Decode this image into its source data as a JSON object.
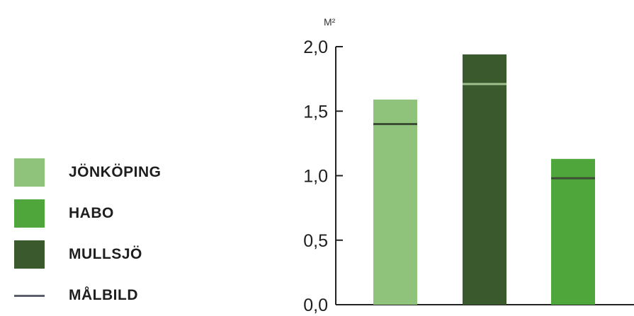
{
  "chart_data": {
    "type": "bar",
    "ylabel": "M²",
    "ylim": [
      0,
      2.0
    ],
    "yticks": [
      "0,0",
      "0,5",
      "1,0",
      "1,5",
      "2,0"
    ],
    "ytick_values": [
      0,
      0.5,
      1.0,
      1.5,
      2.0
    ],
    "grid": false,
    "legend_position": "left",
    "bars": [
      {
        "name": "JÖNKÖPING",
        "value": 1.59,
        "target": 1.4,
        "color": "#8fc37b"
      },
      {
        "name": "MULLSJÖ",
        "value": 1.94,
        "target": 1.71,
        "color": "#3a5a2e"
      },
      {
        "name": "HABO",
        "value": 1.13,
        "target": 0.98,
        "color": "#4fa63a"
      }
    ],
    "target_name": "MÅLBILD",
    "target_colors": {
      "on_light": "#3c4f36",
      "on_dark": "#9fbf8a"
    }
  },
  "legend": {
    "items": [
      {
        "label": "JÖNKÖPING",
        "color": "#8fc37b",
        "kind": "swatch"
      },
      {
        "label": "HABO",
        "color": "#4fa63a",
        "kind": "swatch"
      },
      {
        "label": "MULLSJÖ",
        "color": "#3a5a2e",
        "kind": "swatch"
      },
      {
        "label": "MÅLBILD",
        "color": "#5b5f6a",
        "kind": "line"
      }
    ]
  }
}
